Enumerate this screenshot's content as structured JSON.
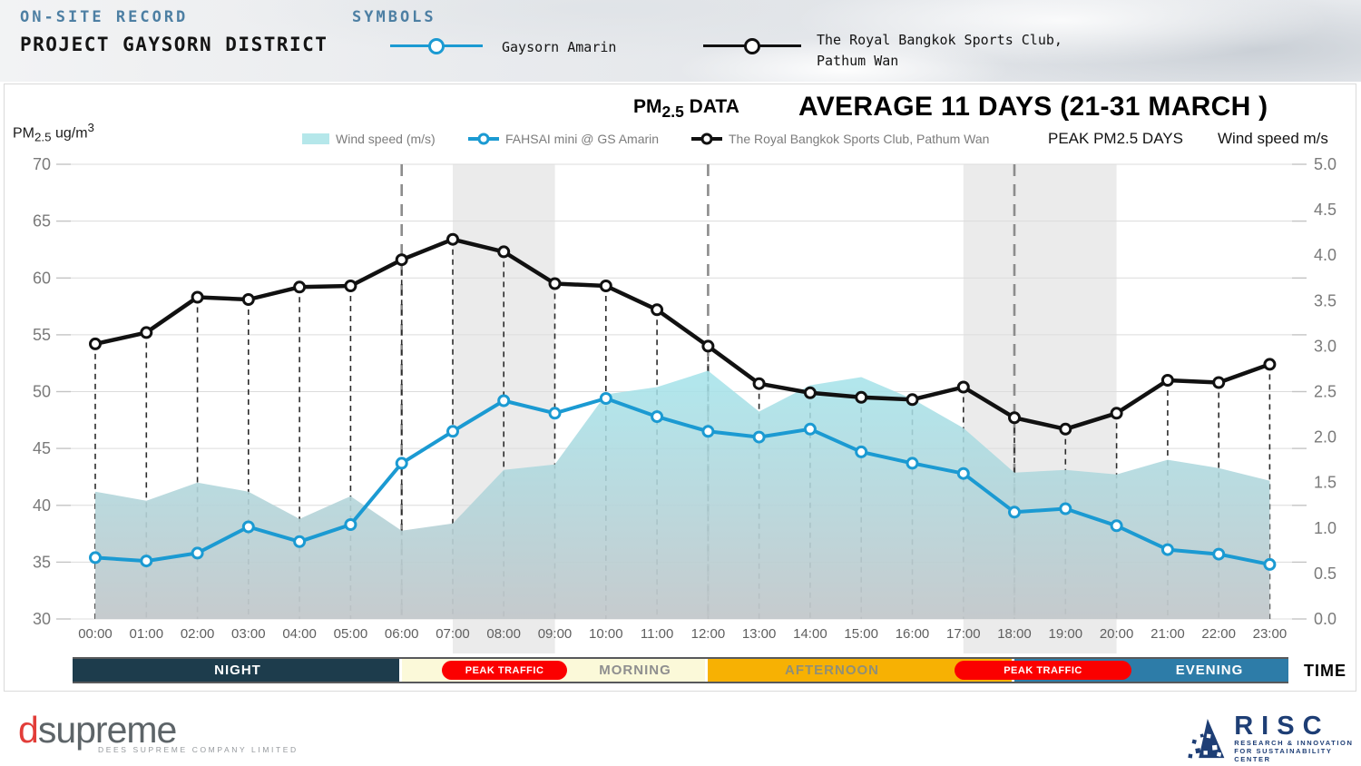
{
  "header": {
    "kicker": "ON-SITE RECORD",
    "title": "PROJECT GAYSORN DISTRICT",
    "symbols_label": "SYMBOLS",
    "symbol1_label": "Gaysorn Amarin",
    "symbol2_line1": "The Royal Bangkok Sports Club,",
    "symbol2_line2": "Pathum Wan"
  },
  "chart_header": {
    "pm_prefix": "PM",
    "pm_sub": "2.5",
    "pm_suffix": " DATA",
    "title": "AVERAGE 11 DAYS (21-31 MARCH )",
    "peak_label": "PEAK PM2.5 DAYS",
    "wind_label": "Wind speed m/s",
    "y_left_prefix": "PM",
    "y_left_sub": "2.5",
    "y_left_mid": " ug/m",
    "y_left_sup": "3"
  },
  "chart_data": {
    "type": "line",
    "x": [
      "00:00",
      "01:00",
      "02:00",
      "03:00",
      "04:00",
      "05:00",
      "06:00",
      "07:00",
      "08:00",
      "09:00",
      "10:00",
      "11:00",
      "12:00",
      "13:00",
      "14:00",
      "15:00",
      "16:00",
      "17:00",
      "18:00",
      "19:00",
      "20:00",
      "21:00",
      "22:00",
      "23:00"
    ],
    "series": [
      {
        "name": "Wind speed (m/s)",
        "type": "area",
        "axis": "right",
        "color": "#a9e5e9",
        "values": [
          1.4,
          1.3,
          1.5,
          1.4,
          1.1,
          1.35,
          0.97,
          1.05,
          1.64,
          1.7,
          2.47,
          2.55,
          2.73,
          2.28,
          2.57,
          2.66,
          2.42,
          2.1,
          1.61,
          1.64,
          1.59,
          1.75,
          1.66,
          1.52
        ]
      },
      {
        "name": "FAHSAI mini @ GS Amarin",
        "type": "line",
        "axis": "left",
        "color": "#1b9ad2",
        "values": [
          35.4,
          35.1,
          35.8,
          38.1,
          36.8,
          38.3,
          43.7,
          46.5,
          49.2,
          48.1,
          49.4,
          47.8,
          46.5,
          46.0,
          46.7,
          44.7,
          43.7,
          42.8,
          39.4,
          39.7,
          38.2,
          36.1,
          35.7,
          34.8
        ]
      },
      {
        "name": "The Royal Bangkok Sports Club, Pathum Wan",
        "type": "line",
        "axis": "left",
        "color": "#111111",
        "values": [
          54.2,
          55.2,
          58.3,
          58.1,
          59.2,
          59.3,
          61.6,
          63.4,
          62.3,
          59.5,
          59.3,
          57.2,
          54.0,
          50.7,
          49.9,
          49.5,
          49.3,
          50.4,
          47.7,
          46.7,
          48.1,
          51.0,
          50.8,
          52.4
        ]
      }
    ],
    "ylabel_left": "PM2.5 ug/m3",
    "ylabel_right": "Wind speed m/s",
    "ylim_left": [
      30,
      70
    ],
    "ylim_right": [
      0,
      5
    ],
    "yticks_left": [
      30,
      35,
      40,
      45,
      50,
      55,
      60,
      65,
      70
    ],
    "yticks_right": [
      "0.0",
      "0.5",
      "1.0",
      "1.5",
      "2.0",
      "2.5",
      "3.0",
      "3.5",
      "4.0",
      "4.5",
      "5.0"
    ],
    "xlabel": "TIME",
    "grid": true,
    "peak_bands": [
      {
        "from": "07:00",
        "to": "09:00"
      },
      {
        "from": "17:00",
        "to": "20:00"
      }
    ],
    "ref_lines": [
      "06:00",
      "12:00",
      "18:00"
    ]
  },
  "time_bands": {
    "bands": [
      {
        "label": "NIGHT",
        "from": 0,
        "to": 6,
        "bg": "#1d3c4c",
        "text_color": "#ffffff"
      },
      {
        "label": "MORNING",
        "from": 6,
        "to": 12,
        "bg": "#fbf9d9",
        "text_color": "#8f8f8f"
      },
      {
        "label": "AFTERNOON",
        "from": 12,
        "to": 18,
        "bg": "#f7b103",
        "text_color": "#8f8f78"
      },
      {
        "label": "EVENING",
        "from": 18,
        "to": 23,
        "bg": "#2d7ca8",
        "text_color": "#ffffff"
      }
    ],
    "pills": [
      {
        "label": "PEAK TRAFFIC",
        "from": 6.79,
        "to": 9.24,
        "bg": "#fb0000",
        "text_color": "#ffffff"
      },
      {
        "label": "PEAK TRAFFIC",
        "from": 16.83,
        "to": 20.29,
        "bg": "#fb0000",
        "text_color": "#ffffff"
      }
    ],
    "axis_label": "TIME"
  },
  "footer": {
    "dsupreme_d": "d",
    "dsupreme_rest": "supreme",
    "dsupreme_tagline": "DEES SUPREME COMPANY LIMITED",
    "risc_name": "RISC",
    "risc_line1": "RESEARCH & INNOVATION",
    "risc_line2": "FOR SUSTAINABILITY CENTER"
  },
  "colors": {
    "header_accent": "#4d7fa3",
    "fahsai_blue": "#1b9ad2",
    "rbsc_black": "#111111",
    "wind_cyan": "#a9e5e9",
    "peak_red": "#fb0000",
    "night": "#1d3c4c",
    "morning": "#fbf9d9",
    "afternoon": "#f7b103",
    "evening": "#2d7ca8",
    "risc_navy": "#1e3e75",
    "dsupreme_red": "#e23d39"
  }
}
